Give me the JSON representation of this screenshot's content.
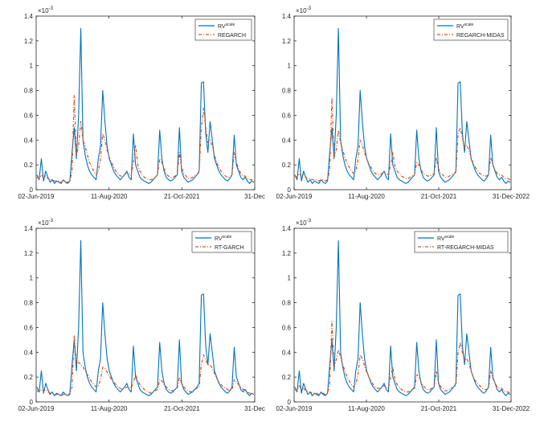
{
  "chart_data": [
    {
      "type": "line",
      "title": "",
      "xlabel": "",
      "ylabel": "",
      "yexponent": "×10",
      "yexponent_power": "-3",
      "ylim": [
        0,
        1.4
      ],
      "yticks": [
        "0",
        "0.2",
        "0.4",
        "0.6",
        "0.8",
        "1",
        "1.2",
        "1.4"
      ],
      "xticks": [
        "02-Jun-2019",
        "11-Aug-2020",
        "21-Oct-2021",
        "31-Dec"
      ],
      "legend_position": "top-right",
      "series": [
        {
          "name": "RV",
          "name_sup": "scale",
          "style": "solid",
          "color": "#0072BD",
          "values": [
            0.12,
            0.08,
            0.25,
            0.07,
            0.15,
            0.1,
            0.06,
            0.08,
            0.05,
            0.07,
            0.06,
            0.05,
            0.08,
            0.06,
            0.05,
            0.07,
            0.3,
            0.5,
            0.25,
            0.6,
            1.3,
            0.4,
            0.28,
            0.2,
            0.15,
            0.12,
            0.1,
            0.08,
            0.25,
            0.35,
            0.8,
            0.55,
            0.35,
            0.25,
            0.2,
            0.15,
            0.12,
            0.1,
            0.08,
            0.1,
            0.12,
            0.15,
            0.1,
            0.08,
            0.45,
            0.2,
            0.15,
            0.1,
            0.08,
            0.07,
            0.06,
            0.05,
            0.06,
            0.08,
            0.1,
            0.12,
            0.48,
            0.25,
            0.15,
            0.1,
            0.08,
            0.07,
            0.08,
            0.1,
            0.12,
            0.5,
            0.15,
            0.1,
            0.08,
            0.06,
            0.07,
            0.08,
            0.1,
            0.12,
            0.15,
            0.86,
            0.87,
            0.45,
            0.3,
            0.55,
            0.4,
            0.25,
            0.2,
            0.15,
            0.12,
            0.1,
            0.08,
            0.07,
            0.09,
            0.12,
            0.44,
            0.2,
            0.15,
            0.1,
            0.08,
            0.1,
            0.07,
            0.05,
            0.07,
            0.06
          ]
        },
        {
          "name": "REGARCH",
          "style": "dashdot",
          "color": "#D95319",
          "values": [
            0.1,
            0.09,
            0.12,
            0.1,
            0.11,
            0.09,
            0.08,
            0.08,
            0.07,
            0.07,
            0.07,
            0.06,
            0.07,
            0.07,
            0.06,
            0.07,
            0.15,
            0.76,
            0.28,
            0.35,
            0.55,
            0.4,
            0.35,
            0.28,
            0.22,
            0.18,
            0.15,
            0.12,
            0.15,
            0.25,
            0.45,
            0.4,
            0.32,
            0.26,
            0.22,
            0.18,
            0.15,
            0.13,
            0.11,
            0.11,
            0.12,
            0.14,
            0.13,
            0.11,
            0.22,
            0.36,
            0.2,
            0.15,
            0.12,
            0.1,
            0.09,
            0.08,
            0.08,
            0.09,
            0.1,
            0.12,
            0.25,
            0.22,
            0.17,
            0.13,
            0.11,
            0.1,
            0.1,
            0.11,
            0.12,
            0.3,
            0.18,
            0.13,
            0.11,
            0.09,
            0.09,
            0.1,
            0.11,
            0.12,
            0.14,
            0.5,
            0.66,
            0.5,
            0.38,
            0.4,
            0.35,
            0.28,
            0.22,
            0.18,
            0.15,
            0.13,
            0.11,
            0.1,
            0.1,
            0.12,
            0.3,
            0.22,
            0.17,
            0.13,
            0.11,
            0.11,
            0.09,
            0.08,
            0.08,
            0.07
          ]
        }
      ]
    },
    {
      "type": "line",
      "title": "",
      "xlabel": "",
      "ylabel": "",
      "yexponent": "×10",
      "yexponent_power": "-3",
      "ylim": [
        0,
        1.4
      ],
      "yticks": [
        "0",
        "0.2",
        "0.4",
        "0.6",
        "0.8",
        "1",
        "1.2",
        "1.4"
      ],
      "xticks": [
        "02-Jun-2019",
        "11-Aug-2020",
        "21-Oct-2021",
        "31-Dec-2022"
      ],
      "legend_position": "top-right",
      "series": [
        {
          "name": "RV",
          "name_sup": "scale",
          "style": "solid",
          "color": "#0072BD",
          "values": [
            0.12,
            0.08,
            0.25,
            0.07,
            0.15,
            0.1,
            0.06,
            0.08,
            0.05,
            0.07,
            0.06,
            0.05,
            0.08,
            0.06,
            0.05,
            0.07,
            0.3,
            0.5,
            0.25,
            0.6,
            1.3,
            0.4,
            0.28,
            0.2,
            0.15,
            0.12,
            0.1,
            0.08,
            0.25,
            0.35,
            0.8,
            0.55,
            0.35,
            0.25,
            0.2,
            0.15,
            0.12,
            0.1,
            0.08,
            0.1,
            0.12,
            0.15,
            0.1,
            0.08,
            0.45,
            0.2,
            0.15,
            0.1,
            0.08,
            0.07,
            0.06,
            0.05,
            0.06,
            0.08,
            0.1,
            0.12,
            0.48,
            0.25,
            0.15,
            0.1,
            0.08,
            0.07,
            0.08,
            0.1,
            0.12,
            0.5,
            0.15,
            0.1,
            0.08,
            0.06,
            0.07,
            0.08,
            0.1,
            0.12,
            0.15,
            0.86,
            0.87,
            0.45,
            0.3,
            0.55,
            0.4,
            0.25,
            0.2,
            0.15,
            0.12,
            0.1,
            0.08,
            0.07,
            0.09,
            0.12,
            0.44,
            0.2,
            0.15,
            0.1,
            0.08,
            0.1,
            0.07,
            0.05,
            0.07,
            0.06
          ]
        },
        {
          "name": "REGARCH-MIDAS",
          "style": "dashdot",
          "color": "#D95319",
          "values": [
            0.11,
            0.1,
            0.13,
            0.11,
            0.12,
            0.1,
            0.09,
            0.09,
            0.08,
            0.08,
            0.08,
            0.07,
            0.08,
            0.08,
            0.07,
            0.08,
            0.16,
            0.74,
            0.26,
            0.32,
            0.48,
            0.38,
            0.32,
            0.26,
            0.21,
            0.18,
            0.15,
            0.13,
            0.15,
            0.24,
            0.4,
            0.36,
            0.3,
            0.25,
            0.21,
            0.18,
            0.15,
            0.13,
            0.12,
            0.12,
            0.13,
            0.14,
            0.13,
            0.12,
            0.2,
            0.3,
            0.19,
            0.15,
            0.13,
            0.11,
            0.1,
            0.09,
            0.09,
            0.1,
            0.11,
            0.12,
            0.22,
            0.2,
            0.16,
            0.13,
            0.12,
            0.11,
            0.11,
            0.12,
            0.13,
            0.26,
            0.17,
            0.13,
            0.12,
            0.1,
            0.1,
            0.11,
            0.12,
            0.13,
            0.14,
            0.45,
            0.5,
            0.42,
            0.34,
            0.36,
            0.32,
            0.26,
            0.21,
            0.18,
            0.15,
            0.13,
            0.12,
            0.11,
            0.11,
            0.12,
            0.26,
            0.2,
            0.16,
            0.13,
            0.12,
            0.12,
            0.1,
            0.09,
            0.09,
            0.08
          ]
        }
      ]
    },
    {
      "type": "line",
      "title": "",
      "xlabel": "",
      "ylabel": "",
      "yexponent": "×10",
      "yexponent_power": "-3",
      "ylim": [
        0,
        1.4
      ],
      "yticks": [
        "0",
        "0.2",
        "0.4",
        "0.6",
        "0.8",
        "1",
        "1.2",
        "1.4"
      ],
      "xticks": [
        "02-Jun-2019",
        "11-Aug-2020",
        "21-Oct-2021",
        "31-Dec"
      ],
      "legend_position": "top-right",
      "series": [
        {
          "name": "RV",
          "name_sup": "scale",
          "style": "solid",
          "color": "#0072BD",
          "values": [
            0.12,
            0.08,
            0.25,
            0.07,
            0.15,
            0.1,
            0.06,
            0.08,
            0.05,
            0.07,
            0.06,
            0.05,
            0.08,
            0.06,
            0.05,
            0.07,
            0.3,
            0.5,
            0.25,
            0.6,
            1.3,
            0.4,
            0.28,
            0.2,
            0.15,
            0.12,
            0.1,
            0.08,
            0.25,
            0.35,
            0.8,
            0.55,
            0.35,
            0.25,
            0.2,
            0.15,
            0.12,
            0.1,
            0.08,
            0.1,
            0.12,
            0.15,
            0.1,
            0.08,
            0.45,
            0.2,
            0.15,
            0.1,
            0.08,
            0.07,
            0.06,
            0.05,
            0.06,
            0.08,
            0.1,
            0.12,
            0.48,
            0.25,
            0.15,
            0.1,
            0.08,
            0.07,
            0.08,
            0.1,
            0.12,
            0.5,
            0.15,
            0.1,
            0.08,
            0.06,
            0.07,
            0.08,
            0.1,
            0.12,
            0.15,
            0.86,
            0.87,
            0.45,
            0.3,
            0.55,
            0.4,
            0.25,
            0.2,
            0.15,
            0.12,
            0.1,
            0.08,
            0.07,
            0.09,
            0.12,
            0.44,
            0.2,
            0.15,
            0.1,
            0.08,
            0.1,
            0.07,
            0.05,
            0.07,
            0.06
          ]
        },
        {
          "name": "RT-GARCH",
          "style": "dashdot",
          "color": "#D95319",
          "values": [
            0.09,
            0.08,
            0.1,
            0.09,
            0.1,
            0.08,
            0.07,
            0.07,
            0.06,
            0.06,
            0.06,
            0.05,
            0.06,
            0.06,
            0.05,
            0.06,
            0.12,
            0.54,
            0.3,
            0.32,
            0.3,
            0.28,
            0.25,
            0.22,
            0.19,
            0.16,
            0.14,
            0.12,
            0.13,
            0.18,
            0.28,
            0.27,
            0.24,
            0.21,
            0.18,
            0.16,
            0.14,
            0.12,
            0.11,
            0.1,
            0.11,
            0.12,
            0.12,
            0.11,
            0.16,
            0.22,
            0.17,
            0.14,
            0.12,
            0.1,
            0.09,
            0.08,
            0.07,
            0.08,
            0.09,
            0.1,
            0.18,
            0.17,
            0.14,
            0.12,
            0.1,
            0.09,
            0.09,
            0.1,
            0.11,
            0.2,
            0.15,
            0.12,
            0.1,
            0.09,
            0.08,
            0.09,
            0.1,
            0.11,
            0.12,
            0.3,
            0.38,
            0.34,
            0.3,
            0.3,
            0.27,
            0.23,
            0.19,
            0.16,
            0.14,
            0.12,
            0.11,
            0.1,
            0.09,
            0.1,
            0.18,
            0.16,
            0.14,
            0.12,
            0.1,
            0.1,
            0.08,
            0.07,
            0.07,
            0.06
          ]
        }
      ]
    },
    {
      "type": "line",
      "title": "",
      "xlabel": "",
      "ylabel": "",
      "yexponent": "×10",
      "yexponent_power": "-3",
      "ylim": [
        0,
        1.4
      ],
      "yticks": [
        "0",
        "0.2",
        "0.4",
        "0.6",
        "0.8",
        "1",
        "1.2",
        "1.4"
      ],
      "xticks": [
        "02-Jun-2019",
        "11-Aug-2020",
        "21-Oct-2021",
        "31-Dec-2022"
      ],
      "legend_position": "top-right",
      "series": [
        {
          "name": "RV",
          "name_sup": "scale",
          "style": "solid",
          "color": "#0072BD",
          "values": [
            0.12,
            0.08,
            0.25,
            0.07,
            0.15,
            0.1,
            0.06,
            0.08,
            0.05,
            0.07,
            0.06,
            0.05,
            0.08,
            0.06,
            0.05,
            0.07,
            0.3,
            0.5,
            0.25,
            0.6,
            1.3,
            0.4,
            0.28,
            0.2,
            0.15,
            0.12,
            0.1,
            0.08,
            0.25,
            0.35,
            0.8,
            0.55,
            0.35,
            0.25,
            0.2,
            0.15,
            0.12,
            0.1,
            0.08,
            0.1,
            0.12,
            0.15,
            0.1,
            0.08,
            0.45,
            0.2,
            0.15,
            0.1,
            0.08,
            0.07,
            0.06,
            0.05,
            0.06,
            0.08,
            0.1,
            0.12,
            0.48,
            0.25,
            0.15,
            0.1,
            0.08,
            0.07,
            0.08,
            0.1,
            0.12,
            0.5,
            0.15,
            0.1,
            0.08,
            0.06,
            0.07,
            0.08,
            0.1,
            0.12,
            0.15,
            0.86,
            0.87,
            0.45,
            0.3,
            0.55,
            0.4,
            0.25,
            0.2,
            0.15,
            0.12,
            0.1,
            0.08,
            0.07,
            0.09,
            0.12,
            0.44,
            0.2,
            0.15,
            0.1,
            0.08,
            0.1,
            0.07,
            0.05,
            0.07,
            0.06
          ]
        },
        {
          "name": "RT-REGARCH-MIDAS",
          "style": "dashdot",
          "color": "#D95319",
          "values": [
            0.1,
            0.09,
            0.13,
            0.1,
            0.11,
            0.09,
            0.08,
            0.08,
            0.07,
            0.07,
            0.07,
            0.06,
            0.07,
            0.07,
            0.06,
            0.07,
            0.14,
            0.65,
            0.28,
            0.34,
            0.42,
            0.36,
            0.3,
            0.25,
            0.2,
            0.17,
            0.14,
            0.12,
            0.14,
            0.22,
            0.38,
            0.35,
            0.29,
            0.24,
            0.2,
            0.17,
            0.14,
            0.12,
            0.11,
            0.11,
            0.12,
            0.13,
            0.12,
            0.11,
            0.2,
            0.28,
            0.18,
            0.14,
            0.12,
            0.1,
            0.09,
            0.08,
            0.08,
            0.09,
            0.1,
            0.11,
            0.22,
            0.2,
            0.16,
            0.13,
            0.11,
            0.1,
            0.1,
            0.11,
            0.12,
            0.25,
            0.16,
            0.12,
            0.11,
            0.09,
            0.09,
            0.1,
            0.11,
            0.12,
            0.13,
            0.4,
            0.48,
            0.4,
            0.33,
            0.35,
            0.31,
            0.25,
            0.2,
            0.17,
            0.15,
            0.13,
            0.11,
            0.1,
            0.1,
            0.11,
            0.25,
            0.19,
            0.15,
            0.12,
            0.11,
            0.11,
            0.09,
            0.08,
            0.08,
            0.07
          ]
        }
      ]
    }
  ]
}
